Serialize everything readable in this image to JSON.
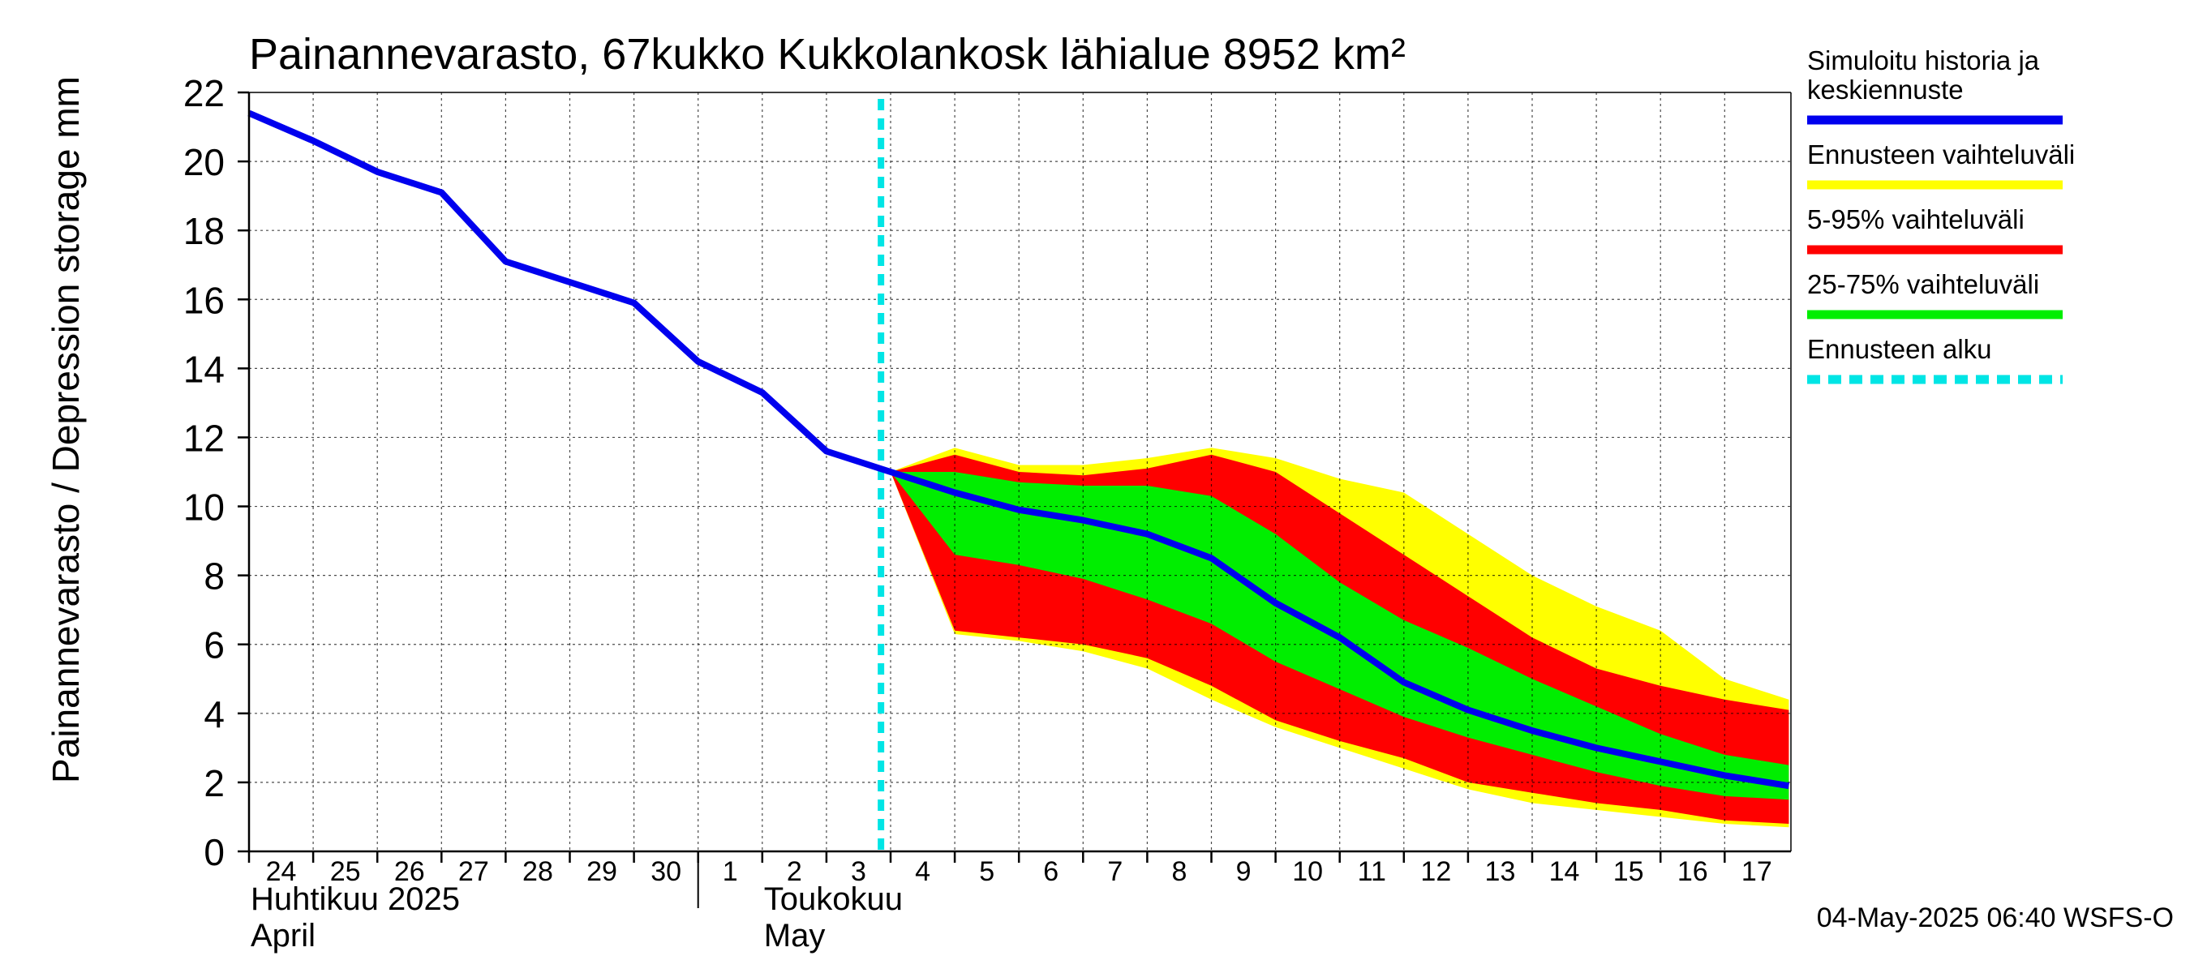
{
  "chart_data": {
    "type": "area",
    "title": "Painannevarasto, 67kukko Kukkolankosk lähialue 8952 km²",
    "ylabel": "Painannevarasto / Depression storage    mm",
    "ylim": [
      0,
      22
    ],
    "yticks": [
      0,
      2,
      4,
      6,
      8,
      10,
      12,
      14,
      16,
      18,
      20,
      22
    ],
    "grid": true,
    "x_start": "2025-04-24",
    "x_end": "2025-05-17",
    "day_labels": [
      {
        "date": "2025-04-24",
        "label": "24"
      },
      {
        "date": "2025-04-25",
        "label": "25"
      },
      {
        "date": "2025-04-26",
        "label": "26"
      },
      {
        "date": "2025-04-27",
        "label": "27"
      },
      {
        "date": "2025-04-28",
        "label": "28"
      },
      {
        "date": "2025-04-29",
        "label": "29"
      },
      {
        "date": "2025-04-30",
        "label": "30"
      },
      {
        "date": "2025-05-01",
        "label": "1"
      },
      {
        "date": "2025-05-02",
        "label": "2"
      },
      {
        "date": "2025-05-03",
        "label": "3"
      },
      {
        "date": "2025-05-04",
        "label": "4"
      },
      {
        "date": "2025-05-05",
        "label": "5"
      },
      {
        "date": "2025-05-06",
        "label": "6"
      },
      {
        "date": "2025-05-07",
        "label": "7"
      },
      {
        "date": "2025-05-08",
        "label": "8"
      },
      {
        "date": "2025-05-09",
        "label": "9"
      },
      {
        "date": "2025-05-10",
        "label": "10"
      },
      {
        "date": "2025-05-11",
        "label": "11"
      },
      {
        "date": "2025-05-12",
        "label": "12"
      },
      {
        "date": "2025-05-13",
        "label": "13"
      },
      {
        "date": "2025-05-14",
        "label": "14"
      },
      {
        "date": "2025-05-15",
        "label": "15"
      },
      {
        "date": "2025-05-16",
        "label": "16"
      },
      {
        "date": "2025-05-17",
        "label": "17"
      }
    ],
    "month_labels": [
      {
        "date": "2025-04-24",
        "line1": "Huhtikuu  2025",
        "line2": "April"
      },
      {
        "date": "2025-05-02",
        "line1": "Toukokuu",
        "line2": "May"
      }
    ],
    "month_boundary": "2025-05-01",
    "forecast_start": "2025-05-04",
    "series": [
      {
        "name": "Simuloitu historia ja keskiennuste",
        "color": "#0000ee",
        "x": [
          "2025-04-24",
          "2025-04-25",
          "2025-04-26",
          "2025-04-27",
          "2025-04-28",
          "2025-04-29",
          "2025-04-30",
          "2025-05-01",
          "2025-05-02",
          "2025-05-03",
          "2025-05-04",
          "2025-05-05",
          "2025-05-06",
          "2025-05-07",
          "2025-05-08",
          "2025-05-09",
          "2025-05-10",
          "2025-05-11",
          "2025-05-12",
          "2025-05-13",
          "2025-05-14",
          "2025-05-15",
          "2025-05-16",
          "2025-05-17",
          "2025-05-18"
        ],
        "values": [
          21.4,
          20.6,
          19.7,
          19.1,
          17.1,
          16.5,
          15.9,
          14.2,
          13.3,
          11.6,
          11.0,
          10.4,
          9.9,
          9.6,
          9.2,
          8.5,
          7.2,
          6.2,
          4.9,
          4.1,
          3.5,
          3.0,
          2.6,
          2.2,
          1.9
        ]
      }
    ],
    "bands": [
      {
        "name": "Ennusteen vaihteluväli",
        "color": "#ffff00",
        "x": [
          "2025-05-04",
          "2025-05-05",
          "2025-05-06",
          "2025-05-07",
          "2025-05-08",
          "2025-05-09",
          "2025-05-10",
          "2025-05-11",
          "2025-05-12",
          "2025-05-13",
          "2025-05-14",
          "2025-05-15",
          "2025-05-16",
          "2025-05-17",
          "2025-05-18"
        ],
        "upper": [
          11.0,
          11.7,
          11.2,
          11.2,
          11.4,
          11.7,
          11.4,
          10.8,
          10.4,
          9.2,
          8.0,
          7.1,
          6.4,
          5.0,
          4.4
        ],
        "lower": [
          11.0,
          6.3,
          6.1,
          5.8,
          5.3,
          4.4,
          3.6,
          3.0,
          2.4,
          1.8,
          1.4,
          1.2,
          1.0,
          0.8,
          0.7
        ]
      },
      {
        "name": "5-95% vaihteluväli",
        "color": "#ff0000",
        "x": [
          "2025-05-04",
          "2025-05-05",
          "2025-05-06",
          "2025-05-07",
          "2025-05-08",
          "2025-05-09",
          "2025-05-10",
          "2025-05-11",
          "2025-05-12",
          "2025-05-13",
          "2025-05-14",
          "2025-05-15",
          "2025-05-16",
          "2025-05-17",
          "2025-05-18"
        ],
        "upper": [
          11.0,
          11.5,
          11.0,
          10.9,
          11.1,
          11.5,
          11.0,
          9.8,
          8.6,
          7.4,
          6.2,
          5.3,
          4.8,
          4.4,
          4.1
        ],
        "lower": [
          11.0,
          6.4,
          6.2,
          6.0,
          5.6,
          4.8,
          3.8,
          3.2,
          2.7,
          2.0,
          1.7,
          1.4,
          1.2,
          0.9,
          0.8
        ]
      },
      {
        "name": "25-75% vaihteluväli",
        "color": "#00ee00",
        "x": [
          "2025-05-04",
          "2025-05-05",
          "2025-05-06",
          "2025-05-07",
          "2025-05-08",
          "2025-05-09",
          "2025-05-10",
          "2025-05-11",
          "2025-05-12",
          "2025-05-13",
          "2025-05-14",
          "2025-05-15",
          "2025-05-16",
          "2025-05-17",
          "2025-05-18"
        ],
        "upper": [
          11.0,
          11.0,
          10.7,
          10.6,
          10.6,
          10.3,
          9.2,
          7.8,
          6.7,
          5.9,
          5.0,
          4.2,
          3.4,
          2.8,
          2.5
        ],
        "lower": [
          11.0,
          8.6,
          8.3,
          7.9,
          7.3,
          6.6,
          5.5,
          4.7,
          3.9,
          3.3,
          2.8,
          2.3,
          1.9,
          1.6,
          1.5
        ]
      }
    ],
    "legend": {
      "placement": "right",
      "items": [
        {
          "label": "Simuloitu historia ja keskiennuste",
          "color": "#0000ee",
          "style": "solid"
        },
        {
          "label": "Ennusteen vaihteluväli",
          "color": "#ffff00",
          "style": "solid"
        },
        {
          "label": "5-95% vaihteluväli",
          "color": "#ff0000",
          "style": "solid"
        },
        {
          "label": "25-75% vaihteluväli",
          "color": "#00ee00",
          "style": "solid"
        },
        {
          "label": "Ennusteen alku",
          "color": "#00e5e5",
          "style": "dashed"
        }
      ]
    },
    "footer": "04-May-2025 06:40 WSFS-O"
  }
}
